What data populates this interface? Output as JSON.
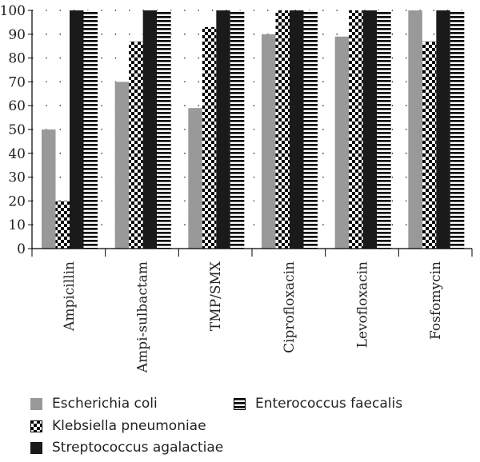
{
  "chart_data": {
    "type": "bar",
    "categories": [
      "Ampicillin",
      "Ampi-sulbactam",
      "TMP/SMX",
      "Ciprofloxacin",
      "Levofloxacin",
      "Fosfomycin"
    ],
    "series": [
      {
        "name": "Escherichia coli",
        "values": [
          50,
          70,
          59,
          90,
          89,
          100
        ],
        "color": "#999999",
        "pattern": "solid-gray"
      },
      {
        "name": "Klebsiella pneumoniae",
        "values": [
          20,
          87,
          93,
          100,
          100,
          87
        ],
        "color": "#000000",
        "pattern": "checker"
      },
      {
        "name": "Streptococcus agalactiae",
        "values": [
          100,
          100,
          100,
          100,
          100,
          100
        ],
        "color": "#1a1a1a",
        "pattern": "solid-black"
      },
      {
        "name": "Enterococcus faecalis",
        "values": [
          100,
          100,
          100,
          100,
          100,
          100
        ],
        "color": "#000000",
        "pattern": "horizontal-stripes"
      }
    ],
    "ylim": [
      0,
      100
    ],
    "yticks": [
      0,
      10,
      20,
      30,
      40,
      50,
      60,
      70,
      80,
      90,
      100
    ],
    "grid": "dotted-horizontal",
    "legend_position": "bottom",
    "xlabel": "",
    "ylabel": "",
    "title": ""
  }
}
